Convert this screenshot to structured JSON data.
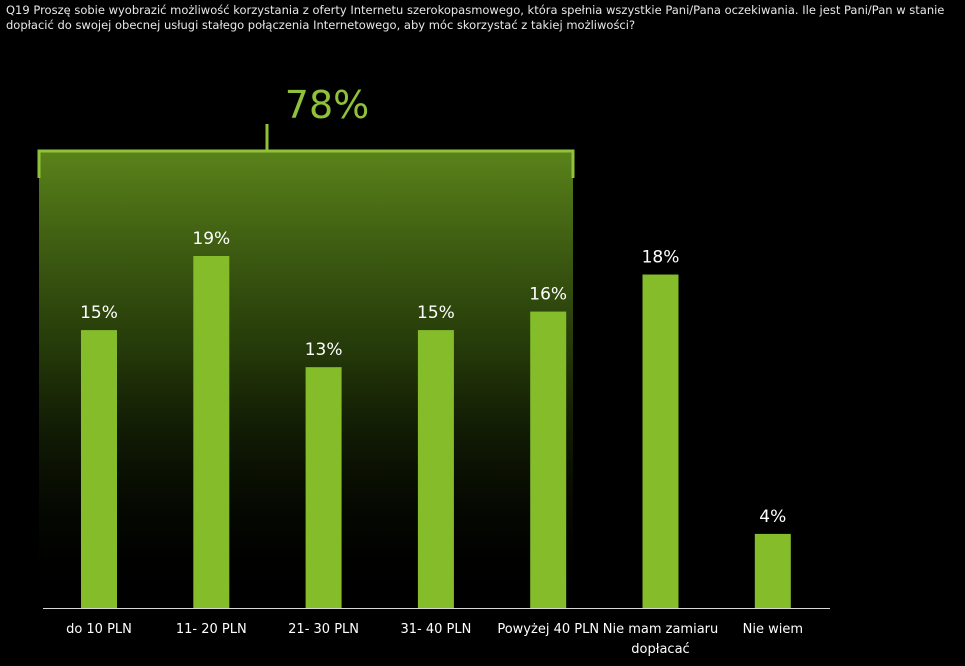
{
  "question": "Q19 Proszę sobie wyobrazić możliwość korzystania z oferty Internetu szerokopasmowego, która spełnia wszystkie Pani/Pana oczekiwania. Ile jest Pani/Pan w stanie dopłacić do swojej obecnej usługi stałego połączenia Internetowego, aby móc skorzystać z takiej możliwości?",
  "colors": {
    "bar": "#84bc2a",
    "bracket": "#8fc23a",
    "background": "#000000",
    "text": "#ffffff"
  },
  "chart_data": {
    "type": "bar",
    "title": "",
    "xlabel": "",
    "ylabel": "",
    "categories": [
      [
        "do 10 PLN"
      ],
      [
        "11- 20 PLN"
      ],
      [
        "21- 30 PLN"
      ],
      [
        "31- 40 PLN"
      ],
      [
        "Powyżej 40 PLN"
      ],
      [
        "Nie mam zamiaru",
        "dopłacać"
      ],
      [
        "Nie wiem"
      ]
    ],
    "values": [
      15,
      19,
      13,
      15,
      16,
      18,
      4
    ],
    "value_labels": [
      "15%",
      "19%",
      "13%",
      "15%",
      "16%",
      "18%",
      "4%"
    ],
    "ylim": [
      0,
      19
    ],
    "grid": false,
    "legend": "none",
    "annotation": {
      "text": "78%",
      "spans_categories": [
        0,
        4
      ]
    }
  }
}
